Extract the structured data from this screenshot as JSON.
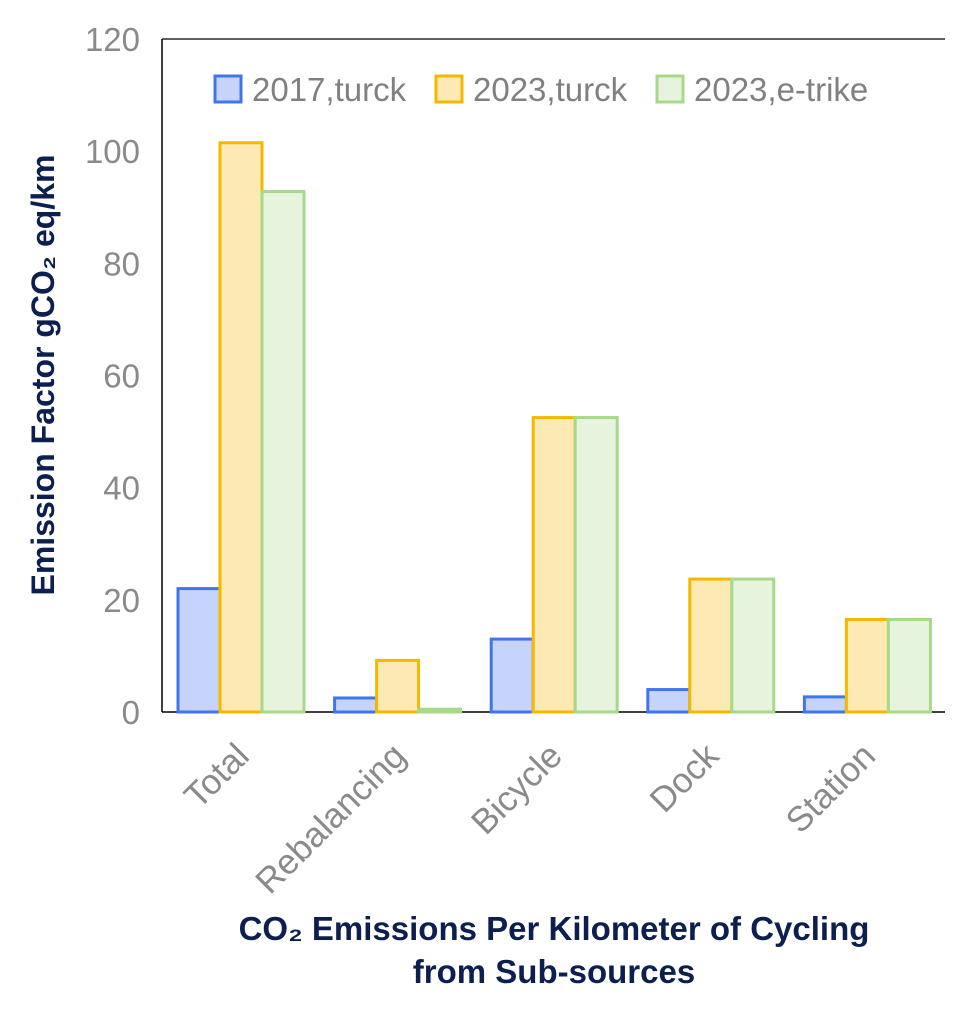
{
  "chart_data": {
    "type": "bar",
    "ylabel": "Emission Factor gCO₂ eq/km",
    "xlabel_line1": "CO₂ Emissions Per Kilometer of Cycling",
    "xlabel_line2": "from Sub-sources",
    "categories": [
      "Total",
      "Rebalancing",
      "Bicycle",
      "Dock",
      "Station"
    ],
    "ylim": [
      0,
      120
    ],
    "yticks": [
      "0",
      "20",
      "40",
      "60",
      "80",
      "100",
      "120"
    ],
    "legend_position": "top",
    "grid": false,
    "series": [
      {
        "name": "2017,turck",
        "fill": "#c6d4fb",
        "stroke": "#3f76e8",
        "values": [
          22,
          2.5,
          13,
          4,
          2.7
        ]
      },
      {
        "name": "2023,turck",
        "fill": "#fde9b3",
        "stroke": "#f5b800",
        "values": [
          101.5,
          9.2,
          52.5,
          23.7,
          16.5
        ]
      },
      {
        "name": "2023,e-trike",
        "fill": "#e6f4dd",
        "stroke": "#a8d98a",
        "values": [
          92.8,
          0.5,
          52.5,
          23.7,
          16.5
        ]
      }
    ]
  }
}
